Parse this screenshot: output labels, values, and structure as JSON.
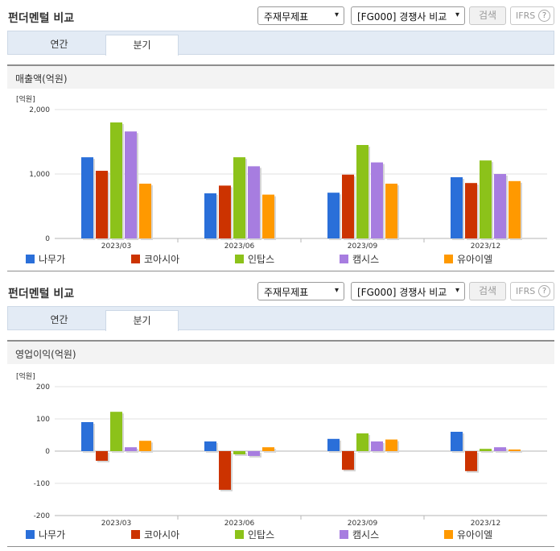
{
  "panels": [
    {
      "title": "펀더멘털 비교",
      "select_statement": "주재무제표",
      "select_compare": "[FG000] 경쟁사 비교",
      "search_label": "검색",
      "ifrs_label": "IFRS",
      "help_label": "?",
      "tabs": [
        "연간",
        "분기"
      ],
      "active_tab": "분기",
      "section_title": "매출액(억원)"
    },
    {
      "title": "펀더멘털 비교",
      "select_statement": "주재무제표",
      "select_compare": "[FG000] 경쟁사 비교",
      "search_label": "검색",
      "ifrs_label": "IFRS",
      "help_label": "?",
      "tabs": [
        "연간",
        "분기"
      ],
      "active_tab": "분기",
      "section_title": "영업이익(억원)"
    }
  ],
  "colors": {
    "series": [
      "#2a6fd9",
      "#cc3300",
      "#8cc21a",
      "#a77de0",
      "#ff9900"
    ],
    "shadow": "#d6d6d6",
    "grid": "#e2e2e2",
    "tab_bar": "#e3ebf5"
  },
  "icons": {
    "dropdown": "chevron-down-icon",
    "help": "question-circle-icon"
  },
  "chart_data": [
    {
      "type": "bar",
      "unit_label": "[억원]",
      "categories": [
        "2023/03",
        "2023/06",
        "2023/09",
        "2023/12"
      ],
      "ylim": [
        0,
        2000
      ],
      "yticks": [
        0,
        1000,
        2000
      ],
      "ytick_labels": [
        "0",
        "1,000",
        "2,000"
      ],
      "grid": true,
      "legend_position": "bottom",
      "series": [
        {
          "name": "나무가",
          "values": [
            1260,
            700,
            710,
            950
          ]
        },
        {
          "name": "코아시아",
          "values": [
            1050,
            820,
            990,
            860
          ]
        },
        {
          "name": "인탑스",
          "values": [
            1800,
            1260,
            1450,
            1210
          ]
        },
        {
          "name": "캠시스",
          "values": [
            1660,
            1120,
            1180,
            1000
          ]
        },
        {
          "name": "유아이엘",
          "values": [
            850,
            680,
            850,
            890
          ]
        }
      ]
    },
    {
      "type": "bar",
      "unit_label": "[억원]",
      "categories": [
        "2023/03",
        "2023/06",
        "2023/09",
        "2023/12"
      ],
      "ylim": [
        -200,
        200
      ],
      "yticks": [
        -200,
        -100,
        0,
        100,
        200
      ],
      "ytick_labels": [
        "-200",
        "-100",
        "0",
        "100",
        "200"
      ],
      "grid": true,
      "legend_position": "bottom",
      "series": [
        {
          "name": "나무가",
          "values": [
            90,
            30,
            38,
            60
          ]
        },
        {
          "name": "코아시아",
          "values": [
            -30,
            -120,
            -58,
            -62
          ]
        },
        {
          "name": "인탑스",
          "values": [
            122,
            -10,
            55,
            7
          ]
        },
        {
          "name": "캠시스",
          "values": [
            12,
            -15,
            30,
            12
          ]
        },
        {
          "name": "유아이엘",
          "values": [
            32,
            12,
            36,
            5
          ]
        }
      ]
    }
  ]
}
